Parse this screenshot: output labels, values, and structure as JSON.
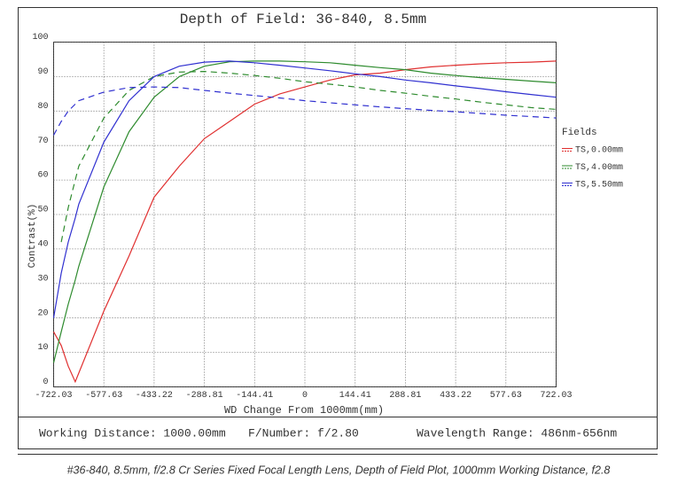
{
  "chart_data": {
    "type": "line",
    "title": "Depth of Field: 36-840, 8.5mm",
    "x_label": "WD Change From 1000mm(mm)",
    "y_label": "Contrast(%)",
    "legend_title": "Fields",
    "xlim": [
      -722.03,
      722.03
    ],
    "ylim": [
      0,
      100
    ],
    "xticks": [
      -722.03,
      -577.63,
      -433.22,
      -288.81,
      -144.41,
      0,
      144.41,
      288.81,
      433.22,
      577.63,
      722.03
    ],
    "yticks": [
      0,
      10,
      20,
      30,
      40,
      50,
      60,
      70,
      80,
      90,
      100
    ],
    "grid": true,
    "x": [
      -722.03,
      -700,
      -680,
      -660,
      -649.8,
      -577.63,
      -505.4,
      -433.22,
      -361,
      -288.81,
      -216.6,
      -144.41,
      -72.2,
      0,
      72.2,
      144.41,
      216.6,
      288.81,
      361,
      433.22,
      505.4,
      577.63,
      649.8,
      722.03
    ],
    "series": [
      {
        "name": "TS,0.00mm",
        "color": "#e03030",
        "values": [
          16,
          12,
          6,
          1.5,
          4,
          22,
          38,
          55,
          64,
          72,
          77,
          82,
          85,
          87,
          89,
          90.5,
          91,
          92,
          92.8,
          93.3,
          93.7,
          94,
          94.2,
          94.5
        ]
      },
      {
        "name": "TS,4.00mm",
        "color": "#2e8b2e",
        "values": [
          7,
          16,
          24,
          31,
          35,
          58,
          74,
          84,
          90,
          93,
          94.3,
          94.5,
          94.5,
          94.3,
          94,
          93.3,
          92.6,
          92,
          91,
          90.3,
          89.7,
          89.2,
          88.7,
          88.2
        ],
        "sagittal_values": [
          null,
          42,
          52,
          60,
          64,
          78,
          86,
          90,
          91.3,
          91.5,
          91,
          90.3,
          89.5,
          88.5,
          87.8,
          87,
          86,
          85.2,
          84.3,
          83.5,
          82.6,
          81.8,
          81,
          80.5
        ]
      },
      {
        "name": "TS,5.50mm",
        "color": "#3030d0",
        "values": [
          20,
          33,
          42,
          49,
          53,
          71,
          83,
          90,
          93,
          94.2,
          94.5,
          94,
          93.3,
          92.5,
          91.7,
          90.8,
          90,
          89,
          88.2,
          87.3,
          86.5,
          85.6,
          84.8,
          84
        ],
        "sagittal_values": [
          73,
          77,
          80,
          82,
          83,
          85.5,
          86.8,
          87,
          86.8,
          86,
          85.2,
          84.5,
          83.8,
          83,
          82.4,
          81.8,
          81.2,
          80.7,
          80.2,
          79.8,
          79.3,
          78.8,
          78.4,
          78
        ]
      }
    ]
  },
  "info": {
    "working_distance": "Working Distance: 1000.00mm",
    "f_number": "F/Number: f/2.80",
    "wavelength": "Wavelength Range: 486nm-656nm"
  },
  "caption": "#36-840, 8.5mm, f/2.8 Cr Series Fixed Focal Length Lens, Depth of Field Plot, 1000mm Working Distance, f2.8"
}
